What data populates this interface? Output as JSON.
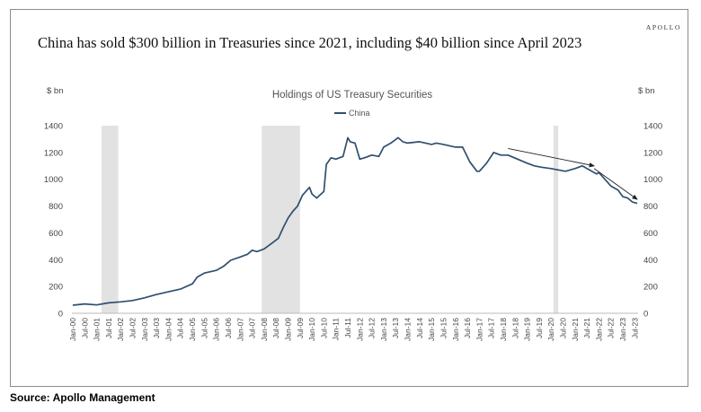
{
  "brand": "APOLLO",
  "headline": "China has sold $300 billion in Treasuries since 2021, including $40 billion since April 2023",
  "source": "Source: Apollo Management",
  "chart_data": {
    "type": "line",
    "title": "Holdings of US Treasury Securities",
    "ylabel_left": "$ bn",
    "ylabel_right": "$ bn",
    "ylim": [
      0,
      1400
    ],
    "yticks": [
      "0",
      "200",
      "400",
      "600",
      "800",
      "1000",
      "1200",
      "1400"
    ],
    "legend": "top-center",
    "grid": false,
    "line_color": "#2f4f6f",
    "shade_color": "#e2e2e2",
    "xtick_labels": [
      "Jan-00",
      "Jul-00",
      "Jan-01",
      "Jul-01",
      "Jan-02",
      "Jul-02",
      "Jan-03",
      "Jul-03",
      "Jan-04",
      "Jul-04",
      "Jan-05",
      "Jul-05",
      "Jan-06",
      "Jul-06",
      "Jan-07",
      "Jul-07",
      "Jan-08",
      "Jul-08",
      "Jan-09",
      "Jul-09",
      "Jan-10",
      "Jul-10",
      "Jan-11",
      "Jul-11",
      "Jan-12",
      "Jul-12",
      "Jan-13",
      "Jul-13",
      "Jan-14",
      "Jul-14",
      "Jan-15",
      "Jul-15",
      "Jan-16",
      "Jul-16",
      "Jan-17",
      "Jul-17",
      "Jan-18",
      "Jul-18",
      "Jan-19",
      "Jul-19",
      "Jan-20",
      "Jul-20",
      "Jan-21",
      "Jul-21",
      "Jan-22",
      "Jul-22",
      "Jan-23",
      "Jul-23"
    ],
    "recessions": [
      {
        "start": 2001.2,
        "end": 2001.9
      },
      {
        "start": 2007.9,
        "end": 2009.5
      },
      {
        "start": 2020.1,
        "end": 2020.3
      }
    ],
    "series": [
      {
        "name": "China",
        "x": [
          2000.0,
          2000.5,
          2001.0,
          2001.5,
          2002.0,
          2002.5,
          2003.0,
          2003.5,
          2004.0,
          2004.5,
          2005.0,
          2005.2,
          2005.5,
          2006.0,
          2006.3,
          2006.6,
          2007.0,
          2007.3,
          2007.5,
          2007.7,
          2008.0,
          2008.3,
          2008.6,
          2008.8,
          2009.0,
          2009.2,
          2009.4,
          2009.6,
          2009.9,
          2010.0,
          2010.2,
          2010.5,
          2010.6,
          2010.8,
          2011.0,
          2011.3,
          2011.5,
          2011.6,
          2011.8,
          2012.0,
          2012.2,
          2012.5,
          2012.8,
          2013.0,
          2013.3,
          2013.6,
          2013.8,
          2014.0,
          2014.5,
          2015.0,
          2015.2,
          2015.5,
          2016.0,
          2016.3,
          2016.6,
          2016.9,
          2017.0,
          2017.3,
          2017.6,
          2017.9,
          2018.2,
          2018.6,
          2019.0,
          2019.3,
          2019.6,
          2020.0,
          2020.3,
          2020.6,
          2021.0,
          2021.3,
          2021.6,
          2021.9,
          2022.0,
          2022.2,
          2022.5,
          2022.8,
          2023.0,
          2023.2,
          2023.4,
          2023.6
        ],
        "values": [
          60,
          70,
          62,
          78,
          85,
          95,
          115,
          140,
          160,
          180,
          220,
          270,
          300,
          320,
          350,
          395,
          420,
          440,
          470,
          460,
          480,
          520,
          560,
          640,
          710,
          760,
          800,
          880,
          940,
          890,
          860,
          910,
          1110,
          1160,
          1150,
          1170,
          1310,
          1280,
          1270,
          1150,
          1160,
          1180,
          1170,
          1240,
          1270,
          1310,
          1280,
          1270,
          1280,
          1260,
          1270,
          1260,
          1240,
          1240,
          1130,
          1060,
          1060,
          1120,
          1200,
          1180,
          1180,
          1150,
          1120,
          1100,
          1090,
          1080,
          1070,
          1060,
          1080,
          1100,
          1070,
          1040,
          1050,
          1010,
          950,
          920,
          870,
          860,
          830,
          820
        ]
      }
    ],
    "trend_arrows": [
      {
        "from": [
          2018.2,
          1230
        ],
        "to": [
          2021.8,
          1100
        ]
      },
      {
        "from": [
          2021.8,
          1080
        ],
        "to": [
          2023.6,
          850
        ]
      }
    ]
  }
}
